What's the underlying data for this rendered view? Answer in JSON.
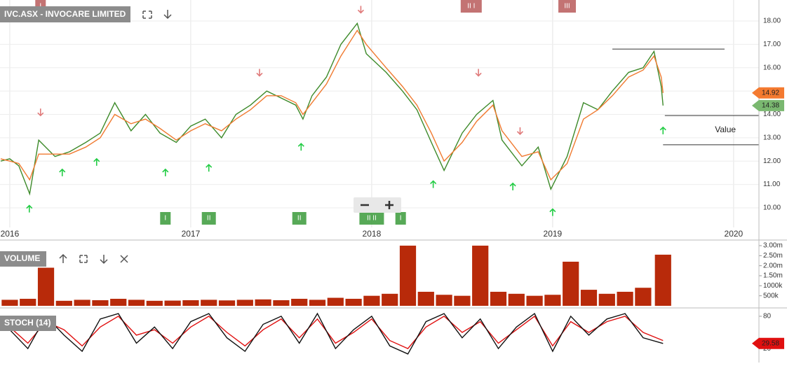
{
  "chart_data": [
    {
      "type": "line",
      "title": "IVC.ASX - INVOCARE LIMITED",
      "x": [
        2015.95,
        2016.0,
        2016.05,
        2016.11,
        2016.16,
        2016.25,
        2016.33,
        2016.42,
        2016.5,
        2016.58,
        2016.67,
        2016.75,
        2016.83,
        2016.92,
        2017.0,
        2017.08,
        2017.17,
        2017.25,
        2017.33,
        2017.42,
        2017.5,
        2017.58,
        2017.62,
        2017.67,
        2017.75,
        2017.83,
        2017.92,
        2017.97,
        2018.08,
        2018.17,
        2018.25,
        2018.33,
        2018.4,
        2018.5,
        2018.58,
        2018.67,
        2018.72,
        2018.83,
        2018.92,
        2018.99,
        2019.08,
        2019.17,
        2019.25,
        2019.33,
        2019.42,
        2019.5,
        2019.56,
        2019.6,
        2019.61
      ],
      "series": [
        {
          "color": "#3d8a2a",
          "values": [
            12.0,
            12.1,
            11.8,
            10.6,
            12.9,
            12.2,
            12.4,
            12.8,
            13.2,
            14.5,
            13.3,
            14.0,
            13.2,
            12.8,
            13.5,
            13.8,
            13.0,
            14.0,
            14.4,
            15.0,
            14.7,
            14.4,
            13.8,
            14.8,
            15.6,
            17.0,
            17.9,
            16.6,
            15.8,
            15.0,
            14.2,
            12.8,
            11.6,
            13.2,
            14.0,
            14.6,
            12.9,
            11.8,
            12.6,
            10.8,
            12.2,
            14.5,
            14.2,
            15.0,
            15.8,
            16.0,
            16.7,
            15.2,
            14.38
          ]
        },
        {
          "color": "#f07a30",
          "values": [
            12.1,
            12.0,
            11.9,
            11.2,
            12.3,
            12.3,
            12.3,
            12.6,
            13.0,
            14.0,
            13.6,
            13.8,
            13.4,
            12.9,
            13.3,
            13.6,
            13.3,
            13.8,
            14.2,
            14.8,
            14.8,
            14.5,
            14.0,
            14.5,
            15.3,
            16.5,
            17.6,
            17.0,
            16.0,
            15.2,
            14.4,
            13.2,
            12.0,
            12.8,
            13.7,
            14.4,
            13.3,
            12.2,
            12.4,
            11.2,
            11.9,
            13.8,
            14.2,
            14.8,
            15.6,
            15.9,
            16.5,
            15.6,
            14.92
          ]
        }
      ],
      "xlim": [
        2015.946,
        2020.14
      ],
      "xticks": [
        2016,
        2017,
        2018,
        2019,
        2020
      ],
      "ylim": [
        9.16,
        18.9
      ],
      "yticks": [
        {
          "value": 10,
          "label": "10.00"
        },
        {
          "value": 11,
          "label": "11.00"
        },
        {
          "value": 12,
          "label": "12.00"
        },
        {
          "value": 13,
          "label": "13.00"
        },
        {
          "value": 14,
          "label": "14.00"
        },
        {
          "value": 15,
          "label": "15.00"
        },
        {
          "value": 16,
          "label": "16.00"
        },
        {
          "value": 17,
          "label": "17.00"
        },
        {
          "value": 18,
          "label": "18.00"
        }
      ],
      "grid": true,
      "hlines": [
        {
          "value": 16.8,
          "x": [
            2019.33,
            2019.95
          ]
        },
        {
          "value": 13.95,
          "x": [
            2019.62,
            2020.14
          ]
        },
        {
          "value": 12.7,
          "x": [
            2019.61,
            2020.14
          ]
        }
      ],
      "annotation": "Value",
      "up_signals": {
        "color": "#22cc44",
        "x": [
          2016.108,
          2016.29,
          2016.48,
          2016.86,
          2017.1,
          2017.61,
          2018.34,
          2018.78,
          2019.0,
          2019.61
        ],
        "y": [
          9.95,
          11.5,
          11.95,
          11.5,
          11.7,
          12.6,
          11.0,
          10.9,
          9.8,
          13.3
        ]
      },
      "down_signals": {
        "color": "#e07a7a",
        "x": [
          2016.17,
          2017.38,
          2017.94,
          2018.59,
          2018.82
        ],
        "y": [
          14.1,
          15.8,
          18.5,
          15.8,
          13.3
        ]
      },
      "events": {
        "top": [
          {
            "x": 2016.17,
            "label": "I"
          },
          {
            "x": 2018.55,
            "label": "II I"
          },
          {
            "x": 2019.08,
            "label": "III"
          }
        ],
        "bottom": [
          {
            "x": 2016.86,
            "label": "I"
          },
          {
            "x": 2017.1,
            "label": "II"
          },
          {
            "x": 2017.6,
            "label": "II"
          },
          {
            "x": 2018.0,
            "label": "II II"
          },
          {
            "x": 2018.16,
            "label": "I"
          }
        ]
      }
    },
    {
      "type": "bar",
      "title": "VOLUME",
      "x": [
        2016.0,
        2016.1,
        2016.2,
        2016.3,
        2016.4,
        2016.5,
        2016.6,
        2016.7,
        2016.8,
        2016.9,
        2017.0,
        2017.1,
        2017.2,
        2017.3,
        2017.4,
        2017.5,
        2017.6,
        2017.7,
        2017.8,
        2017.9,
        2018.0,
        2018.1,
        2018.2,
        2018.3,
        2018.4,
        2018.5,
        2018.6,
        2018.7,
        2018.8,
        2018.9,
        2019.0,
        2019.1,
        2019.2,
        2019.3,
        2019.4,
        2019.5,
        2019.61
      ],
      "series": [
        {
          "color": "#b82a0a",
          "values": [
            300000,
            350000,
            1900000,
            250000,
            300000,
            280000,
            350000,
            300000,
            250000,
            260000,
            280000,
            300000,
            270000,
            300000,
            320000,
            280000,
            350000,
            300000,
            400000,
            350000,
            500000,
            600000,
            3000000,
            700000,
            550000,
            500000,
            3000000,
            700000,
            600000,
            500000,
            550000,
            2200000,
            800000,
            600000,
            700000,
            900000,
            2550000
          ]
        }
      ],
      "xlim": [
        2015.946,
        2020.14
      ],
      "ylim": [
        0,
        3280000
      ],
      "yticks": [
        {
          "value": 500000,
          "label": "500k"
        },
        {
          "value": 1000000,
          "label": "1000k"
        },
        {
          "value": 1500000,
          "label": "1.50m"
        },
        {
          "value": 2000000,
          "label": "2.00m"
        },
        {
          "value": 2500000,
          "label": "2.50m"
        },
        {
          "value": 3000000,
          "label": "3.00m"
        }
      ]
    },
    {
      "type": "line",
      "title": "STOCH (14)",
      "x": [
        2016.0,
        2016.1,
        2016.2,
        2016.3,
        2016.4,
        2016.5,
        2016.6,
        2016.7,
        2016.8,
        2016.9,
        2017.0,
        2017.1,
        2017.2,
        2017.3,
        2017.4,
        2017.5,
        2017.6,
        2017.7,
        2017.8,
        2017.9,
        2018.0,
        2018.1,
        2018.2,
        2018.3,
        2018.4,
        2018.5,
        2018.6,
        2018.7,
        2018.8,
        2018.9,
        2019.0,
        2019.1,
        2019.2,
        2019.3,
        2019.4,
        2019.5,
        2019.61
      ],
      "series": [
        {
          "color": "#e01010",
          "values": [
            60,
            30,
            70,
            55,
            25,
            60,
            80,
            45,
            55,
            30,
            60,
            80,
            50,
            25,
            55,
            75,
            40,
            75,
            30,
            50,
            75,
            35,
            20,
            60,
            80,
            50,
            70,
            30,
            55,
            80,
            25,
            70,
            50,
            70,
            80,
            50,
            35
          ]
        },
        {
          "color": "#111111",
          "values": [
            55,
            20,
            80,
            45,
            15,
            75,
            85,
            30,
            60,
            20,
            70,
            85,
            40,
            15,
            65,
            80,
            30,
            85,
            20,
            55,
            80,
            25,
            10,
            70,
            85,
            40,
            75,
            20,
            60,
            85,
            15,
            80,
            45,
            75,
            85,
            40,
            29.58
          ]
        }
      ],
      "xlim": [
        2015.946,
        2020.14
      ],
      "ylim": [
        2,
        89
      ],
      "yticks": [
        20,
        80
      ]
    }
  ]
}
